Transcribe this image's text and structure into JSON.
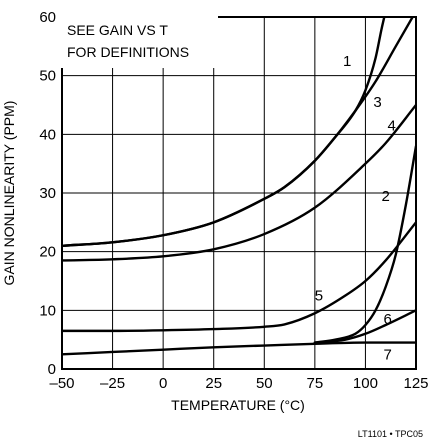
{
  "chart_data": {
    "type": "line",
    "xlabel": "TEMPERATURE (°C)",
    "ylabel": "GAIN NONLINEARITY (PPM)",
    "xlim": [
      -50,
      125
    ],
    "ylim": [
      0,
      60
    ],
    "xticks": [
      -50,
      -25,
      0,
      25,
      50,
      75,
      100,
      125
    ],
    "xtick_labels": [
      "–50",
      "–25",
      "0",
      "25",
      "50",
      "75",
      "100",
      "125"
    ],
    "yticks": [
      0,
      10,
      20,
      30,
      40,
      50,
      60
    ],
    "ytick_labels": [
      "0",
      "10",
      "20",
      "30",
      "40",
      "50",
      "60"
    ],
    "grid": true,
    "annotation": [
      "SEE GAIN VS T",
      "FOR DEFINITIONS"
    ],
    "footer": "LT1101 • TPC05",
    "series": [
      {
        "name": "1",
        "x": [
          -50,
          -25,
          0,
          25,
          50,
          60,
          75,
          85,
          95,
          100,
          105,
          108,
          110
        ],
        "y": [
          21,
          21.6,
          22.8,
          25,
          29,
          31,
          35.5,
          39.5,
          44,
          47.5,
          53,
          58,
          61
        ]
      },
      {
        "name": "2",
        "x": [
          75,
          85,
          95,
          100,
          105,
          110,
          115,
          120,
          125
        ],
        "y": [
          4.5,
          5,
          6,
          7.5,
          10,
          14,
          19.5,
          28,
          38
        ]
      },
      {
        "name": "3",
        "x": [
          -50,
          -25,
          0,
          25,
          50,
          60,
          75,
          85,
          95,
          105,
          115,
          125
        ],
        "y": [
          21,
          21.6,
          22.8,
          25,
          29,
          31,
          35.5,
          39.5,
          44,
          49,
          55,
          61
        ]
      },
      {
        "name": "4",
        "x": [
          -50,
          -25,
          0,
          25,
          50,
          75,
          100,
          110,
          125
        ],
        "y": [
          18.5,
          18.7,
          19.2,
          20.4,
          23,
          27.5,
          35,
          38.5,
          45
        ]
      },
      {
        "name": "5",
        "x": [
          -50,
          -25,
          0,
          25,
          50,
          60,
          75,
          90,
          100,
          110,
          125
        ],
        "y": [
          6.5,
          6.5,
          6.6,
          6.8,
          7.2,
          7.6,
          9.5,
          12.5,
          15,
          18.5,
          25
        ]
      },
      {
        "name": "6",
        "x": [
          75,
          90,
          100,
          110,
          125
        ],
        "y": [
          4.5,
          5,
          6,
          7.5,
          10
        ]
      },
      {
        "name": "7",
        "x": [
          -50,
          -25,
          0,
          25,
          50,
          75,
          100,
          125
        ],
        "y": [
          2.5,
          2.9,
          3.3,
          3.7,
          4.0,
          4.3,
          4.5,
          4.5
        ]
      }
    ],
    "curve_labels": [
      {
        "text": "1",
        "x": 91,
        "y": 52.5
      },
      {
        "text": "2",
        "x": 110,
        "y": 29.5
      },
      {
        "text": "3",
        "x": 106,
        "y": 45.5
      },
      {
        "text": "4",
        "x": 113,
        "y": 41.5
      },
      {
        "text": "5",
        "x": 77,
        "y": 12.5
      },
      {
        "text": "6",
        "x": 111,
        "y": 8.5
      },
      {
        "text": "7",
        "x": 111,
        "y": 2.5
      }
    ]
  }
}
